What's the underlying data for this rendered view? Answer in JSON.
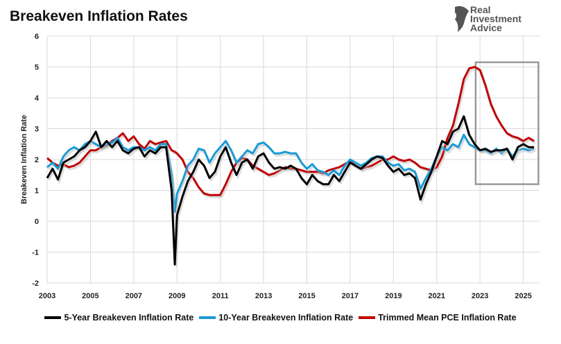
{
  "title": "Breakeven Inflation Rates",
  "logo": {
    "lines": [
      "Real",
      "Investment",
      "Advice"
    ]
  },
  "chart_data": {
    "type": "line",
    "ylabel": "Breakeven Inflation Rate",
    "xlabel": "",
    "ylim": [
      -2,
      6
    ],
    "xlim": [
      2003,
      2025.75
    ],
    "yticks": [
      -2,
      -1,
      0,
      1,
      2,
      3,
      4,
      5,
      6
    ],
    "xticks": [
      2003,
      2005,
      2007,
      2009,
      2011,
      2013,
      2015,
      2017,
      2019,
      2021,
      2023,
      2025
    ],
    "grid": true,
    "legend_placement": "bottom",
    "highlight_box": {
      "x": [
        2022.8,
        2025.7
      ],
      "y": [
        1.2,
        5.15
      ],
      "color": "#999999"
    },
    "x": [
      2003,
      2003.25,
      2003.5,
      2003.75,
      2004,
      2004.25,
      2004.5,
      2004.75,
      2005,
      2005.25,
      2005.5,
      2005.75,
      2006,
      2006.25,
      2006.5,
      2006.75,
      2007,
      2007.25,
      2007.5,
      2007.75,
      2008,
      2008.25,
      2008.5,
      2008.75,
      2008.9,
      2009,
      2009.25,
      2009.5,
      2009.75,
      2010,
      2010.25,
      2010.5,
      2010.75,
      2011,
      2011.25,
      2011.5,
      2011.75,
      2012,
      2012.25,
      2012.5,
      2012.75,
      2013,
      2013.25,
      2013.5,
      2013.75,
      2014,
      2014.25,
      2014.5,
      2014.75,
      2015,
      2015.25,
      2015.5,
      2015.75,
      2016,
      2016.25,
      2016.5,
      2016.75,
      2017,
      2017.25,
      2017.5,
      2017.75,
      2018,
      2018.25,
      2018.5,
      2018.75,
      2019,
      2019.25,
      2019.5,
      2019.75,
      2020,
      2020.25,
      2020.5,
      2020.75,
      2021,
      2021.25,
      2021.5,
      2021.75,
      2022,
      2022.25,
      2022.5,
      2022.75,
      2023,
      2023.25,
      2023.5,
      2023.75,
      2024,
      2024.25,
      2024.5,
      2024.75,
      2025,
      2025.25,
      2025.5
    ],
    "series": [
      {
        "name": "5-Year Breakeven Inflation Rate",
        "color": "#000000",
        "values": [
          1.4,
          1.7,
          1.35,
          1.9,
          2.0,
          2.1,
          2.3,
          2.4,
          2.6,
          2.9,
          2.4,
          2.6,
          2.4,
          2.6,
          2.3,
          2.2,
          2.35,
          2.4,
          2.1,
          2.3,
          2.2,
          2.4,
          2.4,
          1.0,
          -1.4,
          0.2,
          0.8,
          1.3,
          1.6,
          2.0,
          1.8,
          1.4,
          1.6,
          2.1,
          2.4,
          1.9,
          1.5,
          1.9,
          2.0,
          1.7,
          2.1,
          2.2,
          1.9,
          1.7,
          1.75,
          1.7,
          1.8,
          1.7,
          1.4,
          1.2,
          1.5,
          1.3,
          1.2,
          1.2,
          1.5,
          1.3,
          1.6,
          1.9,
          1.8,
          1.7,
          1.85,
          2.0,
          2.1,
          2.05,
          1.8,
          1.6,
          1.7,
          1.5,
          1.55,
          1.4,
          0.7,
          1.2,
          1.6,
          2.1,
          2.6,
          2.5,
          2.9,
          3.0,
          3.4,
          2.8,
          2.5,
          2.3,
          2.35,
          2.25,
          2.3,
          2.3,
          2.35,
          2.0,
          2.4,
          2.5,
          2.4,
          2.4
        ]
      },
      {
        "name": "10-Year Breakeven Inflation Rate",
        "color": "#1a9ad6",
        "values": [
          1.75,
          1.9,
          1.7,
          2.1,
          2.3,
          2.4,
          2.3,
          2.5,
          2.6,
          2.5,
          2.4,
          2.5,
          2.55,
          2.7,
          2.4,
          2.3,
          2.4,
          2.4,
          2.3,
          2.4,
          2.3,
          2.5,
          2.5,
          1.5,
          0.3,
          0.9,
          1.3,
          1.8,
          2.0,
          2.35,
          2.3,
          1.9,
          2.2,
          2.4,
          2.6,
          2.3,
          1.9,
          2.1,
          2.3,
          2.2,
          2.5,
          2.55,
          2.4,
          2.2,
          2.2,
          2.25,
          2.2,
          2.2,
          1.9,
          1.7,
          1.85,
          1.65,
          1.6,
          1.5,
          1.65,
          1.5,
          1.8,
          2.0,
          1.9,
          1.8,
          1.9,
          2.05,
          2.1,
          2.1,
          1.9,
          1.8,
          1.85,
          1.65,
          1.7,
          1.6,
          1.05,
          1.4,
          1.7,
          2.1,
          2.4,
          2.3,
          2.5,
          2.4,
          2.8,
          2.5,
          2.4,
          2.3,
          2.3,
          2.2,
          2.35,
          2.2,
          2.35,
          2.1,
          2.3,
          2.35,
          2.3,
          2.35
        ]
      },
      {
        "name": "Trimmed Mean PCE Inflation Rate",
        "color": "#c00000",
        "values": [
          2.05,
          1.9,
          1.8,
          1.85,
          1.75,
          1.8,
          1.9,
          2.1,
          2.3,
          2.3,
          2.4,
          2.45,
          2.6,
          2.7,
          2.85,
          2.6,
          2.75,
          2.5,
          2.35,
          2.6,
          2.5,
          2.55,
          2.6,
          2.3,
          2.25,
          2.2,
          2.0,
          1.6,
          1.4,
          1.1,
          0.9,
          0.85,
          0.85,
          0.85,
          1.2,
          1.6,
          1.9,
          2.05,
          2.0,
          1.8,
          1.7,
          1.6,
          1.5,
          1.55,
          1.65,
          1.75,
          1.7,
          1.7,
          1.65,
          1.6,
          1.6,
          1.6,
          1.55,
          1.65,
          1.7,
          1.75,
          1.85,
          1.95,
          1.8,
          1.7,
          1.75,
          1.8,
          1.9,
          2.0,
          2.0,
          2.1,
          2.0,
          1.95,
          2.0,
          1.9,
          1.75,
          1.7,
          1.65,
          1.75,
          2.1,
          2.7,
          3.1,
          3.8,
          4.6,
          4.95,
          5.0,
          4.9,
          4.4,
          3.8,
          3.4,
          3.1,
          2.85,
          2.75,
          2.7,
          2.6,
          2.7,
          2.6
        ]
      }
    ]
  }
}
